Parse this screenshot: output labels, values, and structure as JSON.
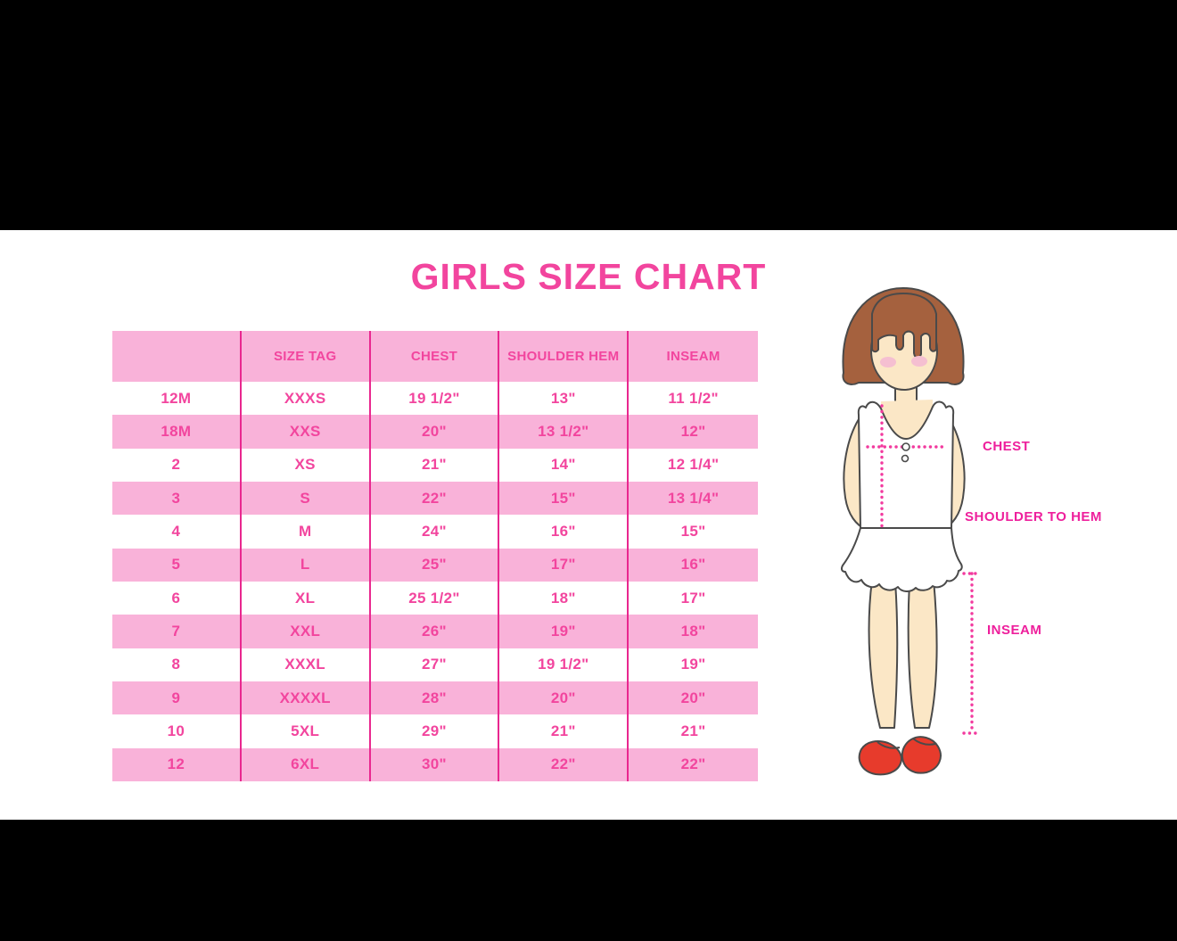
{
  "title": {
    "text": "GIRLS SIZE CHART"
  },
  "size_table": {
    "header": [
      "",
      "SIZE TAG",
      "CHEST",
      "SHOULDER HEM",
      "INSEAM"
    ],
    "rows": [
      [
        "12M",
        "XXXS",
        "19 1/2\"",
        "13\"",
        "11 1/2\""
      ],
      [
        "18M",
        "XXS",
        "20\"",
        "13 1/2\"",
        "12\""
      ],
      [
        "2",
        "XS",
        "21\"",
        "14\"",
        "12 1/4\""
      ],
      [
        "3",
        "S",
        "22\"",
        "15\"",
        "13 1/4\""
      ],
      [
        "4",
        "M",
        "24\"",
        "16\"",
        "15\""
      ],
      [
        "5",
        "L",
        "25\"",
        "17\"",
        "16\""
      ],
      [
        "6",
        "XL",
        "25 1/2\"",
        "18\"",
        "17\""
      ],
      [
        "7",
        "XXL",
        "26\"",
        "19\"",
        "18\""
      ],
      [
        "8",
        "XXXL",
        "27\"",
        "19 1/2\"",
        "19\""
      ],
      [
        "9",
        "XXXXL",
        "28\"",
        "20\"",
        "20\""
      ],
      [
        "10",
        "5XL",
        "29\"",
        "21\"",
        "21\""
      ],
      [
        "12",
        "6XL",
        "30\"",
        "22\"",
        "22\""
      ]
    ]
  },
  "measurement_labels": {
    "chest": "CHEST",
    "shoulder_to_hem": "SHOULDER TO HEM",
    "inseam": "INSEAM"
  },
  "theme": {
    "background": "#000000",
    "panel": "#ffffff",
    "title_pink": "#f2459e",
    "row_pink": "#f9b2d9",
    "table_text_pink": "#f2459e",
    "divider_pink": "#e9278f",
    "label_pink": "#ee1f9c",
    "dotted_pink": "#f23a9e",
    "hair_brown": "#a5613e",
    "skin": "#fbe7c6",
    "blush": "#f5bfd1",
    "shoe_red": "#e73b2c",
    "outline": "#4a4a4a"
  }
}
